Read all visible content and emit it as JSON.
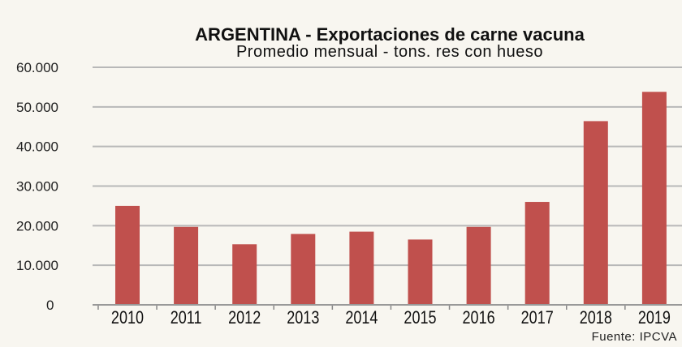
{
  "chart_data": {
    "type": "bar",
    "title": "ARGENTINA - Exportaciones de carne vacuna",
    "subtitle": "Promedio mensual - tons. res con hueso",
    "source": "Fuente: IPCVA",
    "categories": [
      "2010",
      "2011",
      "2012",
      "2013",
      "2014",
      "2015",
      "2016",
      "2017",
      "2018",
      "2019"
    ],
    "values": [
      25000,
      19700,
      15300,
      17900,
      18500,
      16500,
      19700,
      26000,
      46400,
      53800
    ],
    "ylim": [
      0,
      60000
    ],
    "yticks": [
      0,
      10000,
      20000,
      30000,
      40000,
      50000,
      60000
    ],
    "ytick_labels": [
      "0",
      "10.000",
      "20.000",
      "30.000",
      "40.000",
      "50.000",
      "60.000"
    ],
    "grid": true,
    "legend": "none",
    "colors": {
      "bar": "#c0504d",
      "grid": "#b8b8b8",
      "background": "#f8f6f0"
    }
  }
}
